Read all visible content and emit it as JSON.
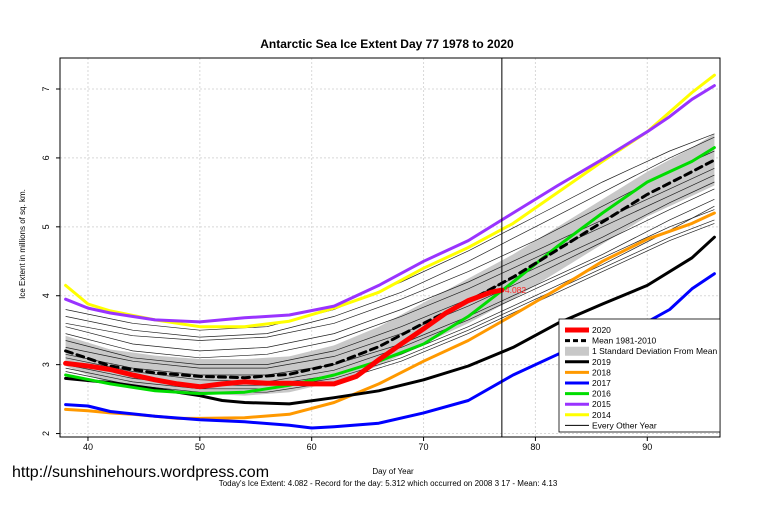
{
  "chart_data": {
    "type": "line",
    "title": "Antarctic Sea Ice Extent Day 77 1978 to 2020",
    "xlabel": "Day of Year",
    "ylabel": "Ice Extent in millions of sq. km.",
    "xlim": [
      37.5,
      96.5
    ],
    "ylim": [
      1.95,
      7.45
    ],
    "xticks": [
      40,
      50,
      60,
      70,
      80,
      90
    ],
    "yticks": [
      2,
      3,
      4,
      5,
      6,
      7
    ],
    "grid": true,
    "legend_position": "bottom-right",
    "vline_day": 77,
    "annotation": {
      "text": "4.082",
      "x": 77,
      "y": 4.082
    },
    "footer": "Today's Ice Extent: 4.082  - Record for the day: 5.312 which occurred on 2008 3 17  - Mean: 4.13",
    "watermark": "http://sunshinehours.wordpress.com",
    "std_band": {
      "name": "1 Standard Deviation From Mean",
      "x": [
        38,
        42,
        46,
        50,
        54,
        58,
        62,
        66,
        70,
        74,
        78,
        82,
        86,
        90,
        94,
        96
      ],
      "upper": [
        3.42,
        3.22,
        3.13,
        3.08,
        3.08,
        3.12,
        3.28,
        3.55,
        3.9,
        4.25,
        4.6,
        5.0,
        5.4,
        5.8,
        6.15,
        6.35
      ],
      "lower": [
        2.98,
        2.72,
        2.63,
        2.58,
        2.55,
        2.6,
        2.75,
        2.98,
        3.3,
        3.6,
        3.95,
        4.35,
        4.75,
        5.15,
        5.45,
        5.6
      ]
    },
    "series": [
      {
        "name": "2020",
        "color": "#ff0000",
        "width": 5,
        "x": [
          38,
          40,
          42,
          44,
          46,
          48,
          50,
          52,
          54,
          56,
          58,
          60,
          62,
          64,
          66,
          68,
          70,
          72,
          74,
          76,
          77
        ],
        "y": [
          3.02,
          2.98,
          2.93,
          2.85,
          2.78,
          2.72,
          2.68,
          2.72,
          2.75,
          2.73,
          2.73,
          2.72,
          2.72,
          2.83,
          3.07,
          3.3,
          3.52,
          3.75,
          3.93,
          4.05,
          4.082
        ]
      },
      {
        "name": "Mean 1981-2010",
        "color": "#000000",
        "width": 3,
        "dash": "7,5",
        "x": [
          38,
          42,
          46,
          50,
          54,
          58,
          62,
          66,
          70,
          74,
          78,
          82,
          86,
          90,
          94,
          96
        ],
        "y": [
          3.2,
          2.98,
          2.88,
          2.83,
          2.81,
          2.86,
          3.01,
          3.26,
          3.6,
          3.92,
          4.27,
          4.67,
          5.07,
          5.47,
          5.8,
          5.97
        ]
      },
      {
        "name": "2019",
        "color": "#000000",
        "width": 3,
        "x": [
          38,
          42,
          46,
          50,
          52,
          54,
          58,
          62,
          66,
          70,
          74,
          78,
          82,
          86,
          90,
          94,
          96
        ],
        "y": [
          2.8,
          2.74,
          2.65,
          2.55,
          2.48,
          2.45,
          2.43,
          2.52,
          2.62,
          2.78,
          2.98,
          3.25,
          3.6,
          3.88,
          4.15,
          4.55,
          4.85
        ]
      },
      {
        "name": "2018",
        "color": "#ff9900",
        "width": 3,
        "x": [
          38,
          40,
          42,
          44,
          46,
          48,
          50,
          54,
          58,
          62,
          66,
          70,
          74,
          78,
          82,
          86,
          90,
          94,
          96
        ],
        "y": [
          2.35,
          2.33,
          2.3,
          2.28,
          2.25,
          2.22,
          2.22,
          2.23,
          2.28,
          2.45,
          2.72,
          3.05,
          3.35,
          3.72,
          4.1,
          4.5,
          4.82,
          5.05,
          5.2
        ]
      },
      {
        "name": "2017",
        "color": "#0000ff",
        "width": 3,
        "x": [
          38,
          40,
          42,
          46,
          50,
          54,
          58,
          60,
          62,
          66,
          70,
          74,
          78,
          82,
          86,
          88,
          90,
          92,
          94,
          96
        ],
        "y": [
          2.42,
          2.4,
          2.32,
          2.25,
          2.2,
          2.17,
          2.12,
          2.08,
          2.1,
          2.15,
          2.3,
          2.48,
          2.85,
          3.15,
          3.38,
          3.5,
          3.62,
          3.8,
          4.1,
          4.32
        ]
      },
      {
        "name": "2016",
        "color": "#00dd00",
        "width": 3,
        "x": [
          38,
          42,
          46,
          50,
          54,
          58,
          62,
          66,
          70,
          74,
          78,
          82,
          86,
          90,
          94,
          96
        ],
        "y": [
          2.85,
          2.72,
          2.62,
          2.58,
          2.6,
          2.7,
          2.85,
          3.05,
          3.3,
          3.7,
          4.2,
          4.72,
          5.2,
          5.65,
          5.95,
          6.15
        ]
      },
      {
        "name": "2015",
        "color": "#9933ff",
        "width": 3,
        "x": [
          38,
          40,
          42,
          46,
          50,
          54,
          58,
          62,
          66,
          70,
          74,
          78,
          82,
          86,
          90,
          92,
          94,
          96
        ],
        "y": [
          3.95,
          3.82,
          3.75,
          3.65,
          3.62,
          3.68,
          3.72,
          3.85,
          4.15,
          4.5,
          4.8,
          5.2,
          5.6,
          5.98,
          6.38,
          6.6,
          6.85,
          7.05
        ]
      },
      {
        "name": "2014",
        "color": "#ffff00",
        "width": 3,
        "x": [
          38,
          40,
          42,
          46,
          50,
          54,
          58,
          62,
          66,
          70,
          74,
          78,
          82,
          86,
          90,
          94,
          96
        ],
        "y": [
          4.15,
          3.88,
          3.78,
          3.65,
          3.55,
          3.55,
          3.63,
          3.82,
          4.05,
          4.4,
          4.7,
          5.05,
          5.5,
          5.95,
          6.38,
          6.95,
          7.2
        ]
      },
      {
        "name": "Every Other Year",
        "color": "#000000",
        "width": 1
      }
    ],
    "background_years": [
      {
        "x": [
          38,
          44,
          50,
          56,
          62,
          68,
          74,
          80,
          86,
          92,
          96
        ],
        "y": [
          3.55,
          3.3,
          3.2,
          3.25,
          3.45,
          3.8,
          4.2,
          4.65,
          5.1,
          5.55,
          5.85
        ]
      },
      {
        "x": [
          38,
          44,
          50,
          56,
          62,
          68,
          74,
          80,
          86,
          92,
          96
        ],
        "y": [
          3.35,
          3.1,
          3.0,
          3.0,
          3.2,
          3.55,
          3.95,
          4.4,
          4.85,
          5.35,
          5.65
        ]
      },
      {
        "x": [
          38,
          44,
          50,
          56,
          62,
          68,
          74,
          80,
          86,
          92,
          96
        ],
        "y": [
          3.15,
          2.95,
          2.85,
          2.85,
          3.0,
          3.3,
          3.7,
          4.15,
          4.6,
          5.1,
          5.4
        ]
      },
      {
        "x": [
          38,
          44,
          50,
          56,
          62,
          68,
          74,
          80,
          86,
          92,
          96
        ],
        "y": [
          3.0,
          2.8,
          2.7,
          2.7,
          2.85,
          3.15,
          3.55,
          4.0,
          4.45,
          4.95,
          5.3
        ]
      },
      {
        "x": [
          38,
          44,
          50,
          56,
          62,
          68,
          74,
          80,
          86,
          92,
          96
        ],
        "y": [
          3.7,
          3.5,
          3.4,
          3.45,
          3.7,
          4.05,
          4.5,
          5.0,
          5.5,
          6.0,
          6.3
        ]
      },
      {
        "x": [
          38,
          44,
          50,
          56,
          62,
          68,
          74,
          80,
          86,
          92,
          96
        ],
        "y": [
          3.1,
          2.9,
          2.78,
          2.75,
          2.92,
          3.25,
          3.65,
          4.1,
          4.55,
          5.0,
          5.25
        ]
      },
      {
        "x": [
          38,
          44,
          50,
          56,
          62,
          68,
          74,
          80,
          86,
          92,
          96
        ],
        "y": [
          3.45,
          3.2,
          3.1,
          3.15,
          3.35,
          3.7,
          4.1,
          4.55,
          5.0,
          5.45,
          5.75
        ]
      },
      {
        "x": [
          38,
          44,
          50,
          56,
          62,
          68,
          74,
          80,
          86,
          92,
          96
        ],
        "y": [
          2.95,
          2.75,
          2.65,
          2.65,
          2.8,
          3.1,
          3.5,
          3.95,
          4.4,
          4.85,
          5.1
        ]
      },
      {
        "x": [
          38,
          44,
          50,
          56,
          62,
          68,
          74,
          80,
          86,
          92,
          96
        ],
        "y": [
          3.6,
          3.42,
          3.35,
          3.4,
          3.6,
          3.95,
          4.35,
          4.8,
          5.3,
          5.8,
          6.1
        ]
      },
      {
        "x": [
          38,
          44,
          50,
          56,
          62,
          68,
          74,
          80,
          86,
          92,
          96
        ],
        "y": [
          3.25,
          3.05,
          2.95,
          2.95,
          3.12,
          3.45,
          3.85,
          4.3,
          4.78,
          5.25,
          5.55
        ]
      },
      {
        "x": [
          38,
          44,
          50,
          56,
          62,
          68,
          74,
          80,
          86,
          92,
          96
        ],
        "y": [
          3.8,
          3.6,
          3.5,
          3.55,
          3.8,
          4.2,
          4.65,
          5.15,
          5.65,
          6.1,
          6.35
        ]
      },
      {
        "x": [
          38,
          44,
          50,
          56,
          62,
          68,
          74,
          80,
          86,
          92,
          96
        ],
        "y": [
          2.9,
          2.7,
          2.6,
          2.6,
          2.75,
          3.05,
          3.45,
          3.9,
          4.35,
          4.8,
          5.05
        ]
      }
    ]
  }
}
